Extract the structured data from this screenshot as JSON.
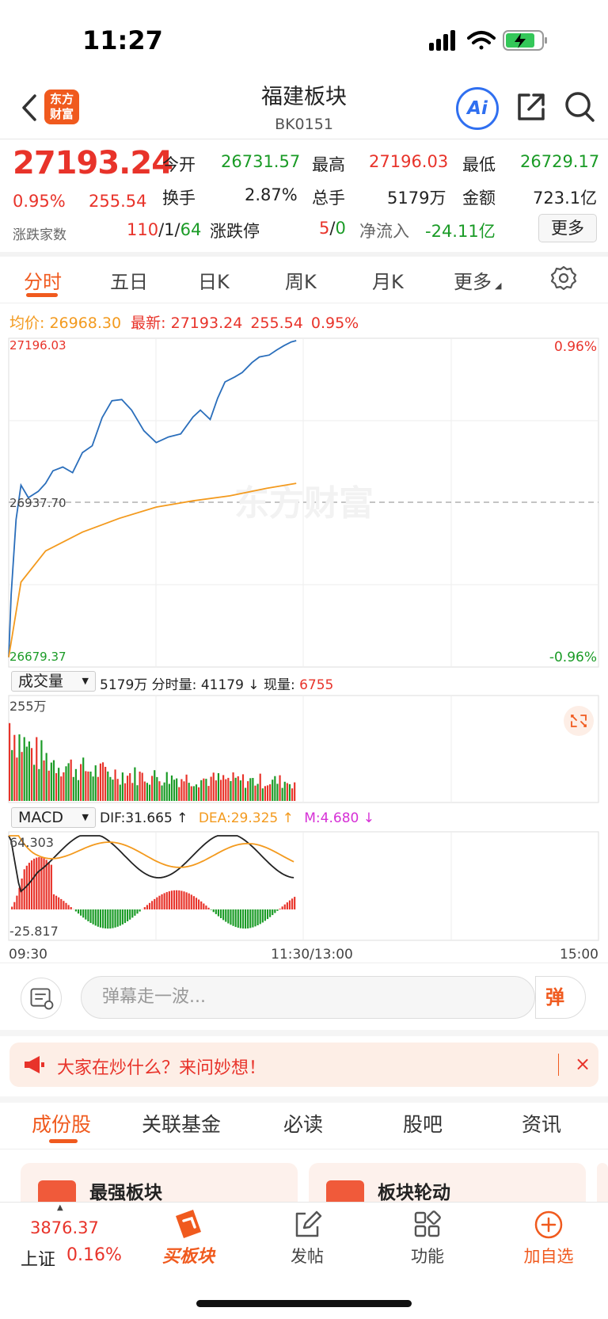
{
  "status_bar": {
    "time": "11:27"
  },
  "header": {
    "title": "福建板块",
    "code": "BK0151",
    "logo_text": "东方\n财富",
    "ai_label": "Ai"
  },
  "quote": {
    "price": "27193.24",
    "change_pct": "0.95%",
    "change": "255.54",
    "open_label": "今开",
    "open": "26731.57",
    "high_label": "最高",
    "high": "27196.03",
    "low_label": "最低",
    "low": "26729.17",
    "turnover_label": "换手",
    "turnover": "2.87%",
    "volume_label": "总手",
    "volume": "5179万",
    "amount_label": "金额",
    "amount": "723.1亿",
    "breadth_label": "涨跌家数",
    "breadth_up": "110",
    "breadth_flat": "1",
    "breadth_down": "64",
    "limit_label": "涨跌停",
    "limit_up": "5",
    "limit_down": "0",
    "netflow_label": "净流入",
    "netflow": "-24.11亿",
    "more_label": "更多"
  },
  "tabs": [
    "分时",
    "五日",
    "日K",
    "周K",
    "月K",
    "更多"
  ],
  "intraday_info": {
    "avg_label": "均价:",
    "avg": "26968.30",
    "latest_label": "最新:",
    "latest": "27193.24",
    "change": "255.54",
    "change_pct": "0.95%"
  },
  "chart_labels": {
    "top_price": "27196.03",
    "bottom_price": "26679.37",
    "top_pct": "0.96%",
    "bottom_pct": "-0.96%",
    "ref_price": "26937.70",
    "watermark": "东方财富"
  },
  "volume_panel": {
    "selector": "成交量",
    "total": "5179万",
    "minute_label": "分时量:",
    "minute_value": "41179",
    "now_label": "现量:",
    "now_value": "6755",
    "max_label": "255万"
  },
  "macd_panel": {
    "selector": "MACD",
    "dif": "DIF:31.665 ↑",
    "dea": "DEA:29.325 ↑",
    "m": "M:4.680 ↓",
    "max_label": "64.303",
    "min_label": "-25.817"
  },
  "time_axis": {
    "start": "09:30",
    "mid": "11:30/13:00",
    "end": "15:00"
  },
  "comment": {
    "placeholder": "弹幕走一波...",
    "danmu_label": "弹"
  },
  "banner": {
    "text": "大家在炒什么？来问妙想！",
    "close": "×"
  },
  "subtabs": [
    "成份股",
    "关联基金",
    "必读",
    "股吧",
    "资讯"
  ],
  "cards": [
    {
      "title": "最强板块"
    },
    {
      "title": "板块轮动"
    }
  ],
  "bottom_nav": {
    "index_value": "3876.37",
    "index_name": "上证",
    "index_pct": "0.16%",
    "buy_label": "买板块",
    "post_label": "发帖",
    "func_label": "功能",
    "add_label": "加自选"
  },
  "chart_data": {
    "type": "line",
    "title": "",
    "price_range": [
      26679.37,
      27196.03
    ],
    "reference": 26937.7,
    "series": [
      {
        "name": "",
        "color": "#2a6ebb",
        "x": [
          "09:30",
          "09:31",
          "09:33",
          "09:35",
          "09:38",
          "09:42",
          "09:45",
          "09:48",
          "09:52",
          "09:56",
          "10:00",
          "10:04",
          "10:08",
          "10:12",
          "10:16",
          "10:20",
          "10:25",
          "10:30",
          "10:35",
          "10:40",
          "10:45",
          "10:48",
          "10:52",
          "10:55",
          "10:58",
          "11:02",
          "11:05",
          "11:09",
          "11:12",
          "11:16",
          "11:19",
          "11:22",
          "11:25",
          "11:27"
        ],
        "values": [
          26690,
          26790,
          26910,
          26965,
          26945,
          26955,
          26968,
          26988,
          26994,
          26985,
          27017,
          27028,
          27073,
          27100,
          27102,
          27085,
          27052,
          27033,
          27042,
          27047,
          27074,
          27085,
          27070,
          27104,
          27130,
          27138,
          27145,
          27161,
          27170,
          27173,
          27181,
          27188,
          27194,
          27196
        ]
      },
      {
        "name": "均价",
        "color": "#f39a1e",
        "x": [
          "09:30",
          "09:35",
          "09:45",
          "10:00",
          "10:15",
          "10:30",
          "10:45",
          "11:00",
          "11:15",
          "11:27"
        ],
        "values": [
          26690,
          26810,
          26860,
          26890,
          26912,
          26930,
          26940,
          26948,
          26960,
          26968
        ]
      }
    ]
  },
  "colors": {
    "accent": "#f05a1e",
    "up": "#e8332a",
    "down": "#1a9b26",
    "price_line": "#2a6ebb",
    "avg_line": "#f39a1e"
  }
}
